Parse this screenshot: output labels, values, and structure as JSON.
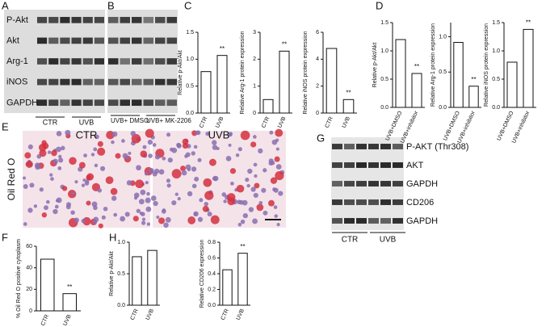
{
  "panel_letters": [
    "A",
    "B",
    "C",
    "D",
    "E",
    "F",
    "G",
    "H"
  ],
  "blot_a": {
    "rows": [
      "P-Akt",
      "Akt",
      "Arg-1",
      "iNOS",
      "GAPDH"
    ],
    "groups": [
      "CTR",
      "UVB"
    ],
    "groups_b": [
      "UVB+ DMSO",
      "UVB+ MK-2206"
    ]
  },
  "micrograph": {
    "left": "CTR",
    "right": "UVB",
    "side": "Oil Red O"
  },
  "blot_g": {
    "rows": [
      "P-AKT (Thr308)",
      "AKT",
      "GAPDH",
      "CD206",
      "GAPDH"
    ],
    "groups": [
      "CTR",
      "UVB"
    ]
  },
  "chart_data": [
    {
      "type": "bar",
      "ylabel": "Relative p-Akt/Akt",
      "categories": [
        "CTR",
        "UVB"
      ],
      "values": [
        0.77,
        1.07
      ],
      "annotations": [
        null,
        "**"
      ],
      "ylim": [
        0,
        1.5
      ],
      "yticks": [
        {
          "value": 0,
          "label": "0.0"
        },
        0.5,
        {
          "value": 1,
          "label": "1.0"
        },
        1.5
      ]
    },
    {
      "type": "bar",
      "ylabel": "Relative Arg-1 protein expression",
      "categories": [
        "CTR",
        "UVB"
      ],
      "values": [
        0.5,
        2.3
      ],
      "annotations": [
        null,
        "**"
      ],
      "ylim": [
        0,
        3
      ],
      "yticks": [
        0,
        1,
        2,
        3
      ]
    },
    {
      "type": "bar",
      "ylabel": "Relative iNOS protein expression",
      "categories": [
        "CTR",
        "UVB"
      ],
      "values": [
        4.8,
        1.0
      ],
      "annotations": [
        null,
        "**"
      ],
      "ylim": [
        0,
        6
      ],
      "yticks": [
        0,
        2,
        4,
        6
      ]
    },
    {
      "type": "bar",
      "ylabel": "Relative p-Akt/Akt",
      "categories": [
        "UVB+DMSO",
        "UVB+inhibitor"
      ],
      "values": [
        1.2,
        0.6
      ],
      "annotations": [
        null,
        "**"
      ],
      "ylim": [
        0,
        1.5
      ],
      "yticks": [
        {
          "value": 0,
          "label": "0.0"
        },
        0.5,
        {
          "value": 1,
          "label": "1.0"
        },
        1.5
      ]
    },
    {
      "type": "bar",
      "ylabel": "Relative Arg-1 protein expression",
      "categories": [
        "UVB+DMSO",
        "UVB+inhibitor"
      ],
      "values": [
        0.92,
        0.3
      ],
      "annotations": [
        null,
        "**"
      ],
      "ylim": [
        0,
        1.2
      ],
      "yticks": [
        {
          "value": 0,
          "label": "0.0"
        },
        0.5,
        {
          "value": 1,
          "label": "1.0"
        }
      ]
    },
    {
      "type": "bar",
      "ylabel": "Relative iNOS protein expression",
      "categories": [
        "UVB+DMSO",
        "UVB+inhibitor"
      ],
      "values": [
        0.8,
        1.38
      ],
      "annotations": [
        null,
        "**"
      ],
      "ylim": [
        0,
        1.5
      ],
      "yticks": [
        {
          "value": 0,
          "label": "0.0"
        },
        0.5,
        {
          "value": 1,
          "label": "1.0"
        },
        1.5
      ]
    },
    {
      "type": "bar",
      "ylabel": "% Oil Red O positive cytoplasm",
      "categories": [
        "CTR",
        "UVB"
      ],
      "values": [
        48,
        16
      ],
      "annotations": [
        null,
        "**"
      ],
      "ylim": [
        0,
        60
      ],
      "yticks": [
        0,
        20,
        40,
        60
      ]
    },
    {
      "type": "bar",
      "ylabel": "Relative p-Akt/Akt",
      "categories": [
        "CTR",
        "UVB"
      ],
      "values": [
        0.77,
        0.87
      ],
      "annotations": [
        null,
        null
      ],
      "ylim": [
        0,
        1
      ],
      "yticks": [
        {
          "value": 0,
          "label": "0.0"
        },
        0.5,
        {
          "value": 1,
          "label": "1.0"
        }
      ]
    },
    {
      "type": "bar",
      "ylabel": "Relative CD206 expression",
      "categories": [
        "CTR",
        "UVB"
      ],
      "values": [
        0.45,
        0.66
      ],
      "annotations": [
        null,
        "**"
      ],
      "ylim": [
        0,
        0.8
      ],
      "yticks": [
        {
          "value": 0,
          "label": "0.0"
        },
        0.2,
        0.4,
        0.6,
        0.8
      ]
    }
  ]
}
